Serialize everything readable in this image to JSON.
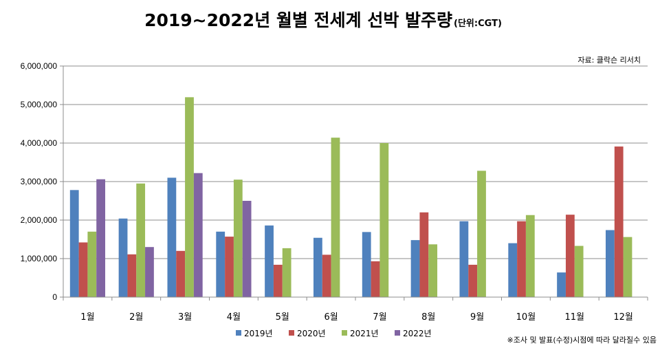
{
  "chart_data": {
    "type": "bar",
    "title": "2019~2022년 월별 전세계 선박 발주량",
    "unit": "(단위:CGT)",
    "source": "자료: 클락슨 리서치",
    "note": "※조사 및 발표(수정)시점에 따라 달라질수 있음",
    "categories": [
      "1월",
      "2월",
      "3월",
      "4월",
      "5월",
      "6월",
      "7월",
      "8월",
      "9월",
      "10월",
      "11월",
      "12월"
    ],
    "ylim": [
      0,
      6000000
    ],
    "yticks": [
      "0",
      "1,000,000",
      "2,000,000",
      "3,000,000",
      "4,000,000",
      "5,000,000",
      "6,000,000"
    ],
    "grid": true,
    "legend_position": "bottom",
    "series": [
      {
        "name": "2019년",
        "color": "#4F81BD",
        "values": [
          2780000,
          2040000,
          3100000,
          1700000,
          1860000,
          1540000,
          1690000,
          1480000,
          1970000,
          1400000,
          640000,
          1740000
        ]
      },
      {
        "name": "2020년",
        "color": "#C0504D",
        "values": [
          1420000,
          1110000,
          1200000,
          1570000,
          840000,
          1100000,
          930000,
          2200000,
          840000,
          1970000,
          2140000,
          3910000
        ]
      },
      {
        "name": "2021년",
        "color": "#9BBB59",
        "values": [
          1700000,
          2950000,
          5190000,
          3050000,
          1270000,
          4140000,
          4000000,
          1370000,
          3280000,
          2130000,
          1330000,
          1560000
        ]
      },
      {
        "name": "2022년",
        "color": "#8064A2",
        "values": [
          3060000,
          1300000,
          3220000,
          2500000,
          null,
          null,
          null,
          null,
          null,
          null,
          null,
          null
        ]
      }
    ]
  }
}
